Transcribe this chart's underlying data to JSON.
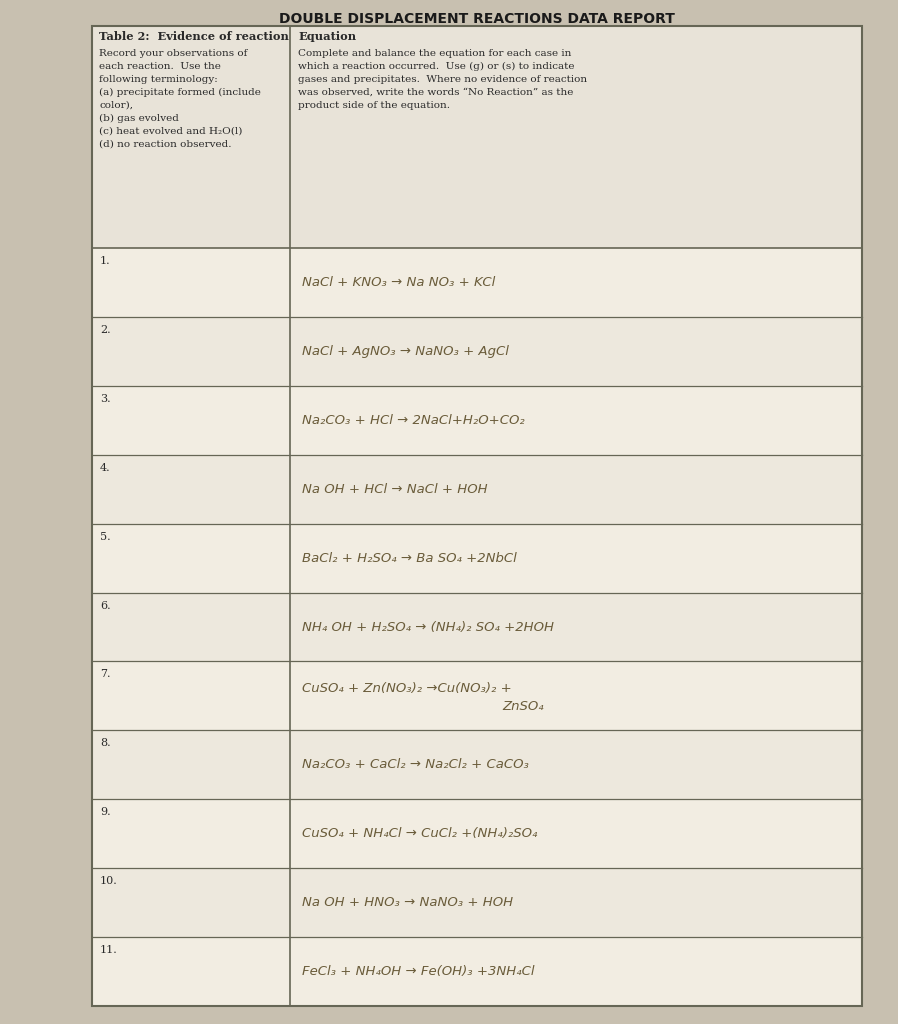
{
  "title": "DOUBLE DISPLACEMENT REACTIONS DATA REPORT",
  "col1_header": "Table 2:  Evidence of reaction",
  "col1_subheader": "Record your observations of\neach reaction.  Use the\nfollowing terminology:\n(a) precipitate formed (include\ncolor),\n(b) gas evolved\n(c) heat evolved and H₂O(l)\n(d) no reaction observed.",
  "col2_header": "Equation",
  "col2_subheader": "Complete and balance the equation for each case in\nwhich a reaction occurred.  Use (g) or (s) to indicate\ngases and precipitates.  Where no evidence of reaction\nwas observed, write the words “No Reaction” as the\nproduct side of the equation.",
  "rows": [
    {
      "num": "1.",
      "eq": "NaCl + KNO₃ → Na NO₃ + KCl",
      "two_line": false
    },
    {
      "num": "2.",
      "eq": "NaCl + AgNO₃ → NaNO₃ + AgCl",
      "two_line": false
    },
    {
      "num": "3.",
      "eq": "Na₂CO₃ + HCl → 2NaCl+H₂O+CO₂",
      "two_line": false
    },
    {
      "num": "4.",
      "eq": "Na OH + HCl → NaCl + HOH",
      "two_line": false
    },
    {
      "num": "5.",
      "eq": "BaCl₂ + H₂SO₄ → Ba SO₄ +2NbCl",
      "two_line": false
    },
    {
      "num": "6.",
      "eq": "NH₄ OH + H₂SO₄ → (NH₄)₂ SO₄ +2HOH",
      "two_line": false
    },
    {
      "num": "7.",
      "eq": "CuSO₄ + Zn(NO₃)₂ →Cu(NO₃)₂ +",
      "eq2": "                              ZnSO₄",
      "two_line": true
    },
    {
      "num": "8.",
      "eq": "Na₂CO₃ + CaCl₂ → Na₂Cl₂ + CaCO₃",
      "two_line": false
    },
    {
      "num": "9.",
      "eq": "CuSO₄ + NH₄Cl → CuCl₂ +(NH₄)₂SO₄",
      "two_line": false
    },
    {
      "num": "10.",
      "eq": "Na OH + HNO₃ → NaNO₃ + HOH",
      "two_line": false
    },
    {
      "num": "11.",
      "eq": "FeCl₃ + NH₄OH → Fe(OH)₃ +3NH₄Cl",
      "two_line": false
    }
  ],
  "page_bg": "#c8c0b0",
  "paper_bg": "#f0ebe0",
  "header_bg": "#e8e3d8",
  "row_bg_odd": "#ede8dd",
  "row_bg_even": "#f2ede2",
  "border_color": "#666655",
  "text_color": "#2a2a2a",
  "hw_color": "#6a5c3a",
  "title_color": "#1a1a1a"
}
